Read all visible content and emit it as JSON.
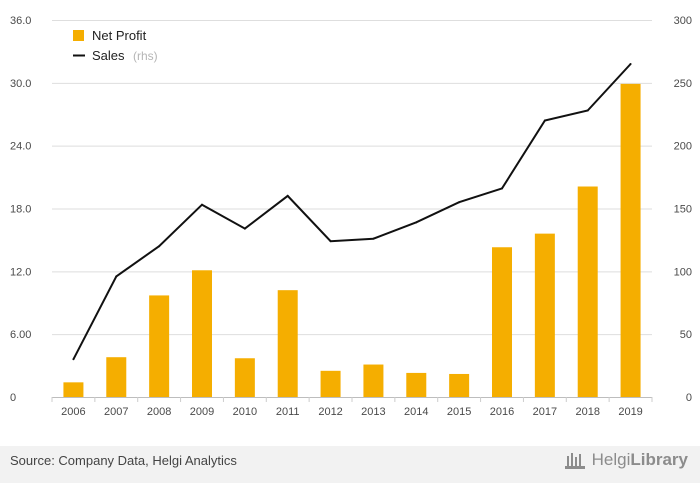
{
  "chart_data": {
    "type": "bar",
    "categories": [
      "2006",
      "2007",
      "2008",
      "2009",
      "2010",
      "2011",
      "2012",
      "2013",
      "2014",
      "2015",
      "2016",
      "2017",
      "2018",
      "2019"
    ],
    "series": [
      {
        "name": "Net Profit",
        "type": "bar",
        "axis": "left",
        "color": "#f5ae00",
        "values": [
          1.4,
          3.8,
          9.7,
          12.1,
          3.7,
          10.2,
          2.5,
          3.1,
          2.3,
          2.2,
          14.3,
          15.6,
          20.1,
          29.9
        ]
      },
      {
        "name": "Sales",
        "type": "line",
        "axis": "right",
        "color": "#111111",
        "values": [
          30,
          96,
          120,
          153,
          134,
          160,
          124,
          126,
          139,
          155,
          166,
          220,
          228,
          265
        ]
      }
    ],
    "ylim": [
      0,
      36
    ],
    "yticks": [
      "0",
      "6.00",
      "12.0",
      "18.0",
      "24.0",
      "30.0",
      "36.0"
    ],
    "y2lim": [
      0,
      300
    ],
    "y2ticks": [
      "0",
      "50",
      "100",
      "150",
      "200",
      "250",
      "300"
    ],
    "legend": {
      "position": "top-left",
      "items": [
        {
          "label": "Net Profit",
          "suffix": ""
        },
        {
          "label": "Sales",
          "suffix": "(rhs)"
        }
      ]
    },
    "grid": true
  },
  "footer": {
    "source": "Source: Company Data, Helgi Analytics",
    "brand_part1": "Helgi",
    "brand_part2": "Library"
  }
}
